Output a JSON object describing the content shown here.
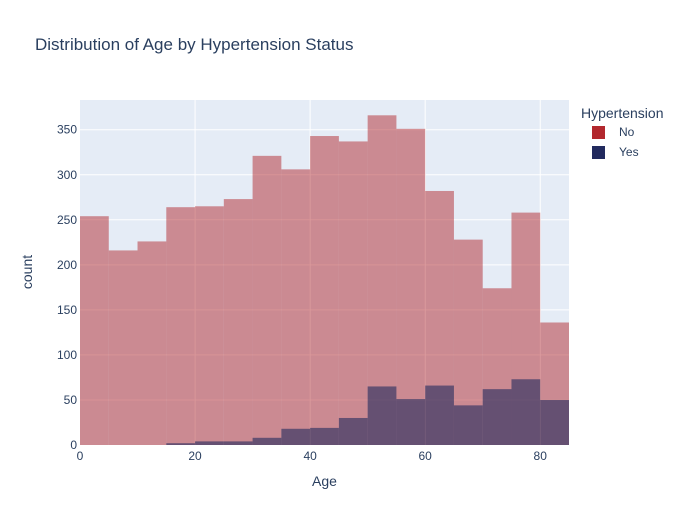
{
  "chart_data": {
    "type": "bar",
    "title": "Distribution of Age by Hypertension Status",
    "xlabel": "Age",
    "ylabel": "count",
    "xlim": [
      0,
      85
    ],
    "ylim": [
      0,
      383
    ],
    "bin_width": 5,
    "x_ticks": [
      "0",
      "20",
      "40",
      "60",
      "80"
    ],
    "x_tick_values": [
      0,
      20,
      40,
      60,
      80
    ],
    "y_ticks": [
      "0",
      "50",
      "100",
      "150",
      "200",
      "250",
      "300",
      "350"
    ],
    "y_tick_values": [
      0,
      50,
      100,
      150,
      200,
      250,
      300,
      350
    ],
    "bin_starts": [
      0,
      5,
      10,
      15,
      20,
      25,
      30,
      35,
      40,
      45,
      50,
      55,
      60,
      65,
      70,
      75,
      80
    ],
    "barmode": "overlay",
    "grid": true,
    "legend_placement": "top-right",
    "legend_title": "Hypertension",
    "background_color": "#e5ecf6",
    "series": [
      {
        "name": "No",
        "color": "#b2282e",
        "opacity": 0.5,
        "values": [
          254,
          216,
          226,
          264,
          265,
          273,
          321,
          306,
          343,
          337,
          366,
          351,
          282,
          228,
          174,
          258,
          136
        ]
      },
      {
        "name": "Yes",
        "color": "#222a5e",
        "opacity": 0.6,
        "values": [
          0,
          0,
          0,
          2,
          4,
          4,
          8,
          18,
          19,
          30,
          65,
          51,
          66,
          44,
          62,
          73,
          50
        ]
      }
    ]
  }
}
